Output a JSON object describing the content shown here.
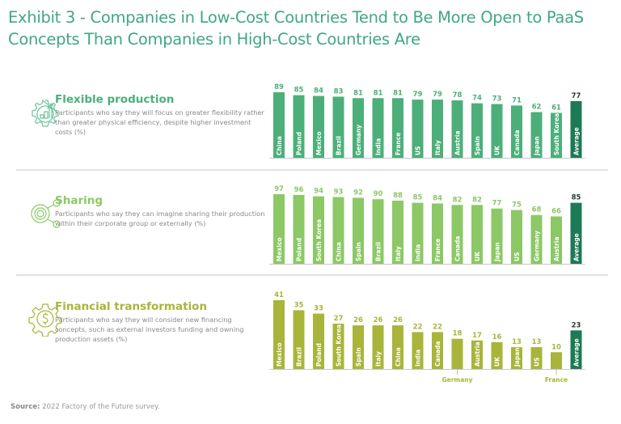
{
  "title": "Exhibit 3 - Companies in Low-Cost Countries Tend to Be More Open to PaaS Concepts Than Companies in High-Cost Countries Are",
  "source_label": "Source:",
  "source_text": "2022 Factory of the Future survey.",
  "colors": {
    "title": "#3fa787",
    "flexible": "#4caf7a",
    "sharing": "#8cc866",
    "financial": "#a8b53a",
    "average": "#1c7a55"
  },
  "sections": [
    {
      "heading": "Flexible production",
      "description": "Participants who say they will focus on greater flexibility rather than greater physical efficiency, despite higher investment costs (%)",
      "icon": "gear-chart-growth-icon"
    },
    {
      "heading": "Sharing",
      "description": "Participants who say they can imagine sharing their production within their corporate group or externally (%)",
      "icon": "share-nodes-icon"
    },
    {
      "heading": "Financial transformation",
      "description": "Participants who say they will consider new financing concepts, such as external investors funding and owning production assets (%)",
      "icon": "gear-dollar-icon"
    }
  ],
  "chart_data": [
    {
      "type": "bar",
      "title": "Flexible production",
      "categories": [
        "China",
        "Poland",
        "Mexico",
        "Brazil",
        "Germany",
        "India",
        "France",
        "US",
        "Italy",
        "Austria",
        "Spain",
        "UK",
        "Canada",
        "Japan",
        "South Korea",
        "Average"
      ],
      "values": [
        89,
        85,
        84,
        83,
        81,
        81,
        81,
        79,
        79,
        78,
        74,
        73,
        71,
        62,
        61,
        77
      ],
      "highlight": "Average",
      "ylim": [
        0,
        100
      ],
      "xlabel": "",
      "ylabel": "%",
      "grid": false,
      "labels_below_axis": []
    },
    {
      "type": "bar",
      "title": "Sharing",
      "categories": [
        "Mexico",
        "Poland",
        "South Korea",
        "China",
        "Spain",
        "Brazil",
        "Italy",
        "India",
        "France",
        "Canada",
        "UK",
        "Japan",
        "US",
        "Germany",
        "Austria",
        "Average"
      ],
      "values": [
        97,
        96,
        94,
        93,
        92,
        90,
        88,
        85,
        84,
        82,
        82,
        77,
        75,
        68,
        66,
        85
      ],
      "highlight": "Average",
      "ylim": [
        0,
        100
      ],
      "xlabel": "",
      "ylabel": "%",
      "grid": false,
      "labels_below_axis": []
    },
    {
      "type": "bar",
      "title": "Financial transformation",
      "categories": [
        "Mexico",
        "Brazil",
        "Poland",
        "South Korea",
        "Spain",
        "Italy",
        "China",
        "India",
        "Canada",
        "Germany",
        "Austria",
        "UK",
        "Japan",
        "US",
        "France",
        "Average"
      ],
      "values": [
        41,
        35,
        33,
        27,
        26,
        26,
        26,
        22,
        22,
        18,
        17,
        16,
        13,
        13,
        10,
        23
      ],
      "highlight": "Average",
      "ylim": [
        0,
        45
      ],
      "xlabel": "",
      "ylabel": "%",
      "grid": false,
      "labels_below_axis": [
        "Germany",
        "France"
      ]
    }
  ]
}
